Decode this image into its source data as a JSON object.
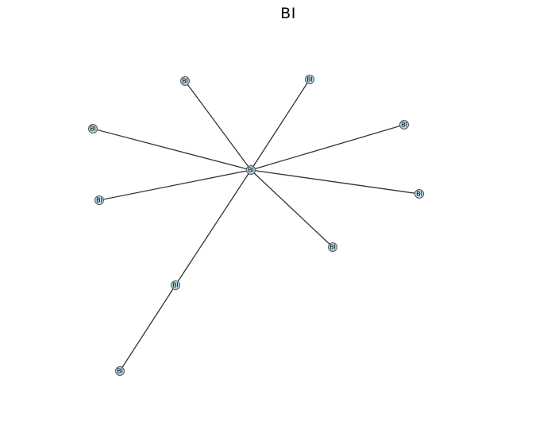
{
  "title": "BI",
  "colors": {
    "node_fill": "#b8dcea",
    "node_stroke": "#555555",
    "edge": "#333333"
  },
  "graph": {
    "nodes": [
      {
        "id": "hub",
        "label": "BI"
      },
      {
        "id": "n1",
        "label": "BI"
      },
      {
        "id": "n2",
        "label": "BI"
      },
      {
        "id": "n3",
        "label": "BI"
      },
      {
        "id": "n4",
        "label": "BI"
      },
      {
        "id": "n5",
        "label": "BI"
      },
      {
        "id": "n6",
        "label": "BI"
      },
      {
        "id": "n7",
        "label": "BI"
      },
      {
        "id": "n8",
        "label": "BI"
      },
      {
        "id": "n9",
        "label": "BI"
      }
    ],
    "edges": [
      {
        "source": "hub",
        "target": "n1"
      },
      {
        "source": "hub",
        "target": "n2"
      },
      {
        "source": "hub",
        "target": "n3"
      },
      {
        "source": "hub",
        "target": "n4"
      },
      {
        "source": "hub",
        "target": "n5"
      },
      {
        "source": "hub",
        "target": "n6"
      },
      {
        "source": "hub",
        "target": "n7"
      },
      {
        "source": "hub",
        "target": "n8"
      },
      {
        "source": "n8",
        "target": "n9"
      }
    ]
  }
}
